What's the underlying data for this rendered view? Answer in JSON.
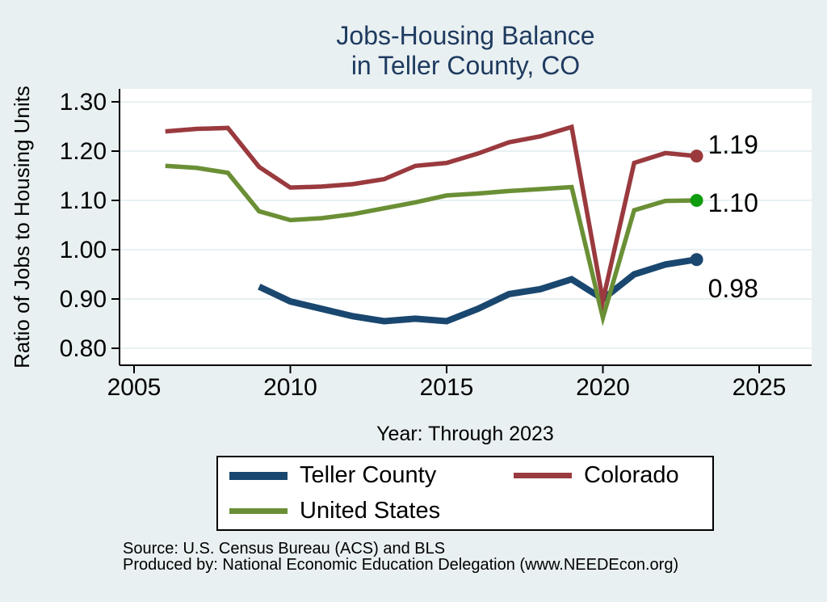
{
  "page": {
    "background": "#e9f0f2",
    "title_line1": "Jobs-Housing Balance",
    "title_line2": "in Teller County, CO",
    "title_color": "#1e3a5f"
  },
  "chart_data": {
    "type": "line",
    "title": "Jobs-Housing Balance in Teller County, CO",
    "xlabel": "Year: Through 2023",
    "ylabel": "Ratio of Jobs to Housing Units",
    "x_ticks": [
      2005,
      2010,
      2015,
      2020,
      2025
    ],
    "y_ticks": [
      1.3,
      1.2,
      1.1,
      1.0,
      0.9,
      0.8
    ],
    "xlim": [
      2004.5,
      2026.7
    ],
    "ylim": [
      0.766,
      1.326
    ],
    "grid": "horizontal",
    "gridline_color": "#e0ebee",
    "series": [
      {
        "name": "Teller County",
        "color": "#1a476f",
        "marker_color": "#1a476f",
        "line_width": 8,
        "start_year": 2009,
        "end_label": "0.98",
        "values": [
          0.925,
          0.895,
          0.88,
          0.865,
          0.855,
          0.86,
          0.855,
          0.88,
          0.91,
          0.92,
          0.94,
          0.9,
          0.95,
          0.97,
          0.98
        ]
      },
      {
        "name": "United States",
        "color": "#6a8f35",
        "marker_color": "#0f9c0f",
        "line_width": 5.5,
        "start_year": 2006,
        "end_label": "1.10",
        "values": [
          1.17,
          1.166,
          1.156,
          1.078,
          1.06,
          1.064,
          1.072,
          1.084,
          1.096,
          1.11,
          1.114,
          1.119,
          1.123,
          1.127,
          0.862,
          1.08,
          1.099,
          1.1
        ]
      },
      {
        "name": "Colorado",
        "color": "#9a3a3e",
        "marker_color": "#9a3a3e",
        "line_width": 5.5,
        "start_year": 2006,
        "end_label": "1.19",
        "values": [
          1.24,
          1.245,
          1.247,
          1.168,
          1.126,
          1.128,
          1.133,
          1.143,
          1.17,
          1.176,
          1.195,
          1.218,
          1.23,
          1.249,
          0.897,
          1.176,
          1.196,
          1.19
        ]
      }
    ]
  },
  "legend": {
    "items": [
      {
        "label": "Teller County",
        "color": "#1a476f",
        "swatch_height": 10
      },
      {
        "label": "Colorado",
        "color": "#9a3a3e",
        "swatch_height": 7
      },
      {
        "label": "United States",
        "color": "#6a8f35",
        "swatch_height": 7
      }
    ]
  },
  "footer": {
    "source_line1": "Source: U.S. Census Bureau (ACS) and BLS",
    "source_line2": "Produced by: National Economic Education Delegation (www.NEEDEcon.org)"
  }
}
